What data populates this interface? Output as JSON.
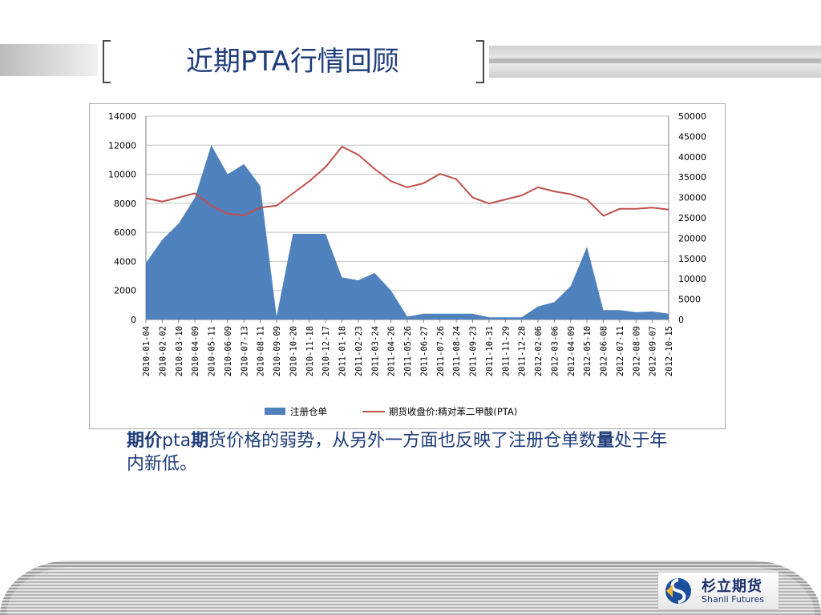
{
  "slide": {
    "title": "近期PTA行情回顾",
    "caption_bold_1": "期价",
    "caption_text_1": "pta",
    "caption_bold_2": "期",
    "caption_text_2": "货价格的弱势，从另外一方面也反映了注册仓单数",
    "caption_bold_3": "量",
    "caption_text_3": "处于年内新低。",
    "logo_cn": "杉立期货",
    "logo_en": "Shanli Futures"
  },
  "colors": {
    "title": "#1f3d7a",
    "area": "#4f81bd",
    "line": "#c0504d",
    "grid": "#c0c0c0"
  },
  "chart_data": {
    "type": "area+line",
    "categories": [
      "2010-01-04",
      "2010-02-02",
      "2010-03-10",
      "2010-04-09",
      "2010-05-11",
      "2010-06-09",
      "2010-07-13",
      "2010-08-11",
      "2010-09-09",
      "2010-10-20",
      "2010-11-18",
      "2010-12-17",
      "2011-01-18",
      "2011-02-23",
      "2011-03-24",
      "2011-04-26",
      "2011-05-26",
      "2011-06-27",
      "2011-07-26",
      "2011-08-24",
      "2011-09-23",
      "2011-10-31",
      "2011-11-29",
      "2011-12-28",
      "2012-02-06",
      "2012-03-06",
      "2012-04-09",
      "2012-05-10",
      "2012-06-08",
      "2012-07-11",
      "2012-08-09",
      "2012-09-07",
      "2012-10-15"
    ],
    "y_left_ticks": [
      "0",
      "2000",
      "4000",
      "6000",
      "8000",
      "10000",
      "12000",
      "14000"
    ],
    "y_right_ticks": [
      "0",
      "5000",
      "10000",
      "15000",
      "20000",
      "25000",
      "30000",
      "35000",
      "40000",
      "45000",
      "50000"
    ],
    "ylim_left": [
      0,
      14000
    ],
    "ylim_right": [
      0,
      50000
    ],
    "legend_position": "bottom",
    "series": [
      {
        "name": "注册仓单",
        "axis": "left",
        "style": "area",
        "values": [
          3900,
          5500,
          6600,
          8400,
          12000,
          10000,
          10700,
          9200,
          200,
          5900,
          5900,
          5900,
          2900,
          2700,
          3200,
          2000,
          200,
          400,
          400,
          400,
          400,
          150,
          150,
          150,
          900,
          1200,
          2300,
          5000,
          650,
          650,
          500,
          550,
          400
        ]
      },
      {
        "name": "期货收盘价:精对苯二甲酸(PTA)",
        "axis": "right",
        "style": "line",
        "values": [
          29800,
          29000,
          30000,
          31000,
          28000,
          26000,
          25600,
          27500,
          28000,
          31000,
          34000,
          37500,
          42500,
          40500,
          37000,
          34000,
          32500,
          33500,
          35800,
          34500,
          30000,
          28500,
          29500,
          30500,
          32500,
          31500,
          30800,
          29500,
          25500,
          27200,
          27200,
          27500,
          27000
        ]
      }
    ]
  }
}
